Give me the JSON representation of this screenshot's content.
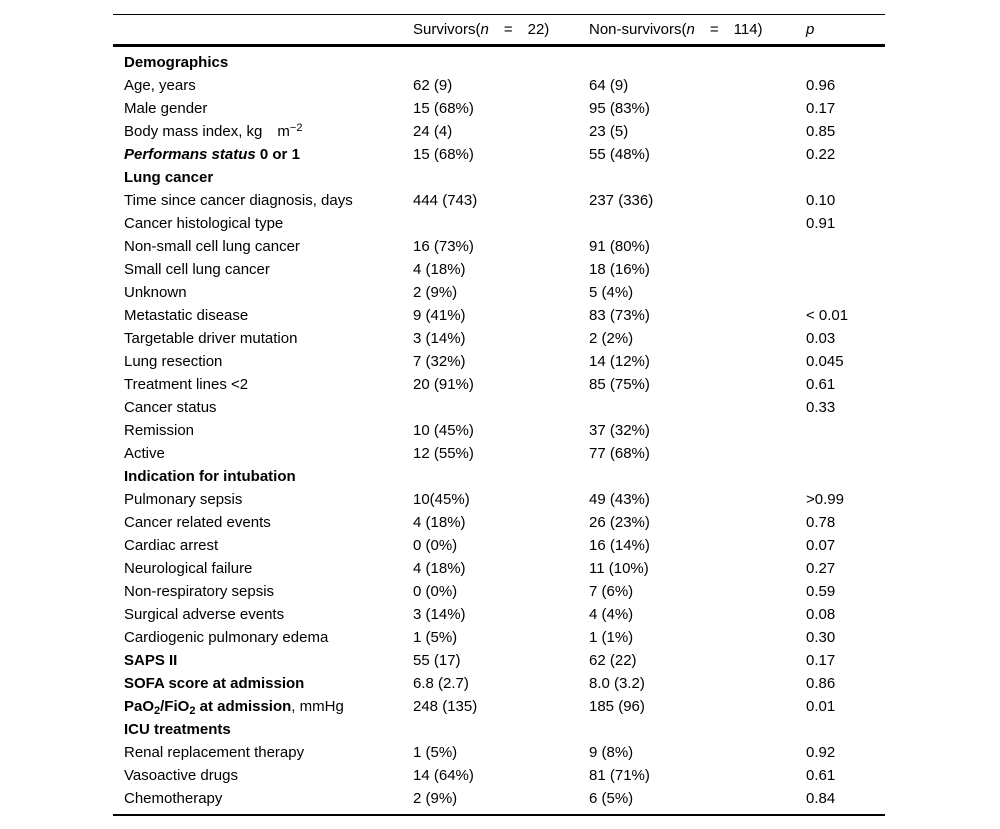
{
  "page": {
    "background_color": "#ffffff",
    "text_color": "#000000",
    "rule_color": "#000000"
  },
  "table": {
    "header": {
      "cols": [
        {
          "parts": []
        },
        {
          "parts": [
            {
              "t": "Survivors("
            },
            {
              "t": "n",
              "i": true
            },
            {
              "t": " = 22)"
            }
          ]
        },
        {
          "parts": [
            {
              "t": "Non-survivors("
            },
            {
              "t": "n",
              "i": true
            },
            {
              "t": " = 114)"
            }
          ]
        },
        {
          "parts": [
            {
              "t": "p",
              "i": true
            }
          ]
        }
      ]
    },
    "rows": [
      {
        "label_parts": [
          {
            "t": "Demographics",
            "b": true
          }
        ],
        "survivors": "",
        "nonsurvivors": "",
        "p": ""
      },
      {
        "label_parts": [
          {
            "t": "Age, years"
          }
        ],
        "survivors": "62 (9)",
        "nonsurvivors": "64 (9)",
        "p": "0.96"
      },
      {
        "label_parts": [
          {
            "t": "Male gender"
          }
        ],
        "survivors": "15 (68%)",
        "nonsurvivors": "95 (83%)",
        "p": "0.17"
      },
      {
        "label_parts": [
          {
            "t": "Body mass index, kg "
          },
          {
            "t": "m"
          },
          {
            "t": "−2",
            "sup": true
          }
        ],
        "survivors": "24 (4)",
        "nonsurvivors": "23 (5)",
        "p": "0.85"
      },
      {
        "label_parts": [
          {
            "t": "Performans status",
            "b": true,
            "i": true
          },
          {
            "t": " 0 or 1",
            "b": true
          }
        ],
        "survivors": "15 (68%)",
        "nonsurvivors": "55 (48%)",
        "p": "0.22"
      },
      {
        "label_parts": [
          {
            "t": "Lung cancer",
            "b": true
          }
        ],
        "survivors": "",
        "nonsurvivors": "",
        "p": ""
      },
      {
        "label_parts": [
          {
            "t": "Time since cancer diagnosis, days"
          }
        ],
        "survivors": "444 (743)",
        "nonsurvivors": "237 (336)",
        "p": "0.10"
      },
      {
        "label_parts": [
          {
            "t": "Cancer histological type"
          }
        ],
        "survivors": "",
        "nonsurvivors": "",
        "p": "0.91"
      },
      {
        "label_parts": [
          {
            "t": "Non-small cell lung cancer"
          }
        ],
        "survivors": "16 (73%)",
        "nonsurvivors": "91 (80%)",
        "p": ""
      },
      {
        "label_parts": [
          {
            "t": "Small cell lung cancer"
          }
        ],
        "survivors": "4 (18%)",
        "nonsurvivors": "18 (16%)",
        "p": ""
      },
      {
        "label_parts": [
          {
            "t": "Unknown"
          }
        ],
        "survivors": "2 (9%)",
        "nonsurvivors": "5 (4%)",
        "p": ""
      },
      {
        "label_parts": [
          {
            "t": "Metastatic disease"
          }
        ],
        "survivors": "9 (41%)",
        "nonsurvivors": "83 (73%)",
        "p": "< 0.01"
      },
      {
        "label_parts": [
          {
            "t": "Targetable driver mutation"
          }
        ],
        "survivors": "3 (14%)",
        "nonsurvivors": "2 (2%)",
        "p": "0.03"
      },
      {
        "label_parts": [
          {
            "t": "Lung resection"
          }
        ],
        "survivors": "7 (32%)",
        "nonsurvivors": "14 (12%)",
        "p": "0.045"
      },
      {
        "label_parts": [
          {
            "t": "Treatment lines <2"
          }
        ],
        "survivors": "20 (91%)",
        "nonsurvivors": "85 (75%)",
        "p": "0.61"
      },
      {
        "label_parts": [
          {
            "t": "Cancer status"
          }
        ],
        "survivors": "",
        "nonsurvivors": "",
        "p": "0.33"
      },
      {
        "label_parts": [
          {
            "t": "Remission"
          }
        ],
        "survivors": "10 (45%)",
        "nonsurvivors": "37 (32%)",
        "p": ""
      },
      {
        "label_parts": [
          {
            "t": "Active"
          }
        ],
        "survivors": "12 (55%)",
        "nonsurvivors": "77 (68%)",
        "p": ""
      },
      {
        "label_parts": [
          {
            "t": "Indication for intubation",
            "b": true
          }
        ],
        "survivors": "",
        "nonsurvivors": "",
        "p": ""
      },
      {
        "label_parts": [
          {
            "t": "Pulmonary sepsis"
          }
        ],
        "survivors": "10(45%)",
        "nonsurvivors": "49 (43%)",
        "p": ">0.99"
      },
      {
        "label_parts": [
          {
            "t": "Cancer related events"
          }
        ],
        "survivors": "4 (18%)",
        "nonsurvivors": "26 (23%)",
        "p": "0.78"
      },
      {
        "label_parts": [
          {
            "t": "Cardiac arrest"
          }
        ],
        "survivors": "0 (0%)",
        "nonsurvivors": "16 (14%)",
        "p": "0.07"
      },
      {
        "label_parts": [
          {
            "t": "Neurological failure"
          }
        ],
        "survivors": "4 (18%)",
        "nonsurvivors": "11 (10%)",
        "p": "0.27"
      },
      {
        "label_parts": [
          {
            "t": "Non-respiratory sepsis"
          }
        ],
        "survivors": "0 (0%)",
        "nonsurvivors": "7 (6%)",
        "p": "0.59"
      },
      {
        "label_parts": [
          {
            "t": "Surgical adverse events"
          }
        ],
        "survivors": "3 (14%)",
        "nonsurvivors": "4 (4%)",
        "p": "0.08"
      },
      {
        "label_parts": [
          {
            "t": "Cardiogenic pulmonary edema"
          }
        ],
        "survivors": "1 (5%)",
        "nonsurvivors": "1 (1%)",
        "p": "0.30"
      },
      {
        "label_parts": [
          {
            "t": "SAPS II",
            "b": true
          }
        ],
        "survivors": "55 (17)",
        "nonsurvivors": "62 (22)",
        "p": "0.17"
      },
      {
        "label_parts": [
          {
            "t": "SOFA score at admission",
            "b": true
          }
        ],
        "survivors": "6.8 (2.7)",
        "nonsurvivors": "8.0 (3.2)",
        "p": "0.86"
      },
      {
        "label_parts": [
          {
            "t": "PaO",
            "b": true
          },
          {
            "t": "2",
            "b": true,
            "sub": true
          },
          {
            "t": "/FiO",
            "b": true
          },
          {
            "t": "2",
            "b": true,
            "sub": true
          },
          {
            "t": " at admission",
            "b": true
          },
          {
            "t": ", mmHg"
          }
        ],
        "survivors": "248 (135)",
        "nonsurvivors": "185 (96)",
        "p": "0.01"
      },
      {
        "label_parts": [
          {
            "t": "ICU treatments",
            "b": true
          }
        ],
        "survivors": "",
        "nonsurvivors": "",
        "p": ""
      },
      {
        "label_parts": [
          {
            "t": "Renal replacement therapy"
          }
        ],
        "survivors": "1 (5%)",
        "nonsurvivors": "9 (8%)",
        "p": "0.92"
      },
      {
        "label_parts": [
          {
            "t": "Vasoactive drugs"
          }
        ],
        "survivors": "14 (64%)",
        "nonsurvivors": "81 (71%)",
        "p": "0.61"
      },
      {
        "label_parts": [
          {
            "t": "Chemotherapy"
          }
        ],
        "survivors": "2 (9%)",
        "nonsurvivors": "6 (5%)",
        "p": "0.84"
      }
    ]
  }
}
